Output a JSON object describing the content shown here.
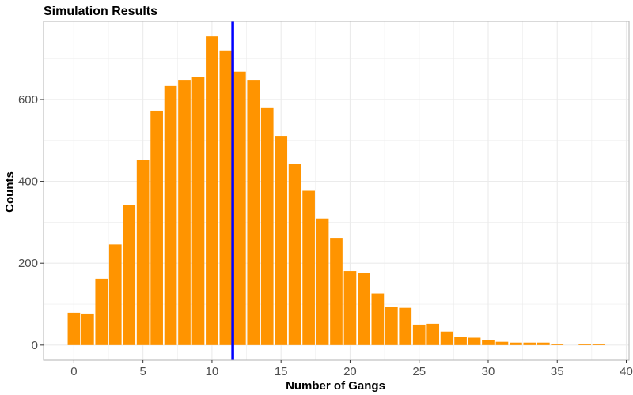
{
  "colors": {
    "bar": "#ff9400",
    "vline": "#0000ff",
    "grid": "#ebebeb",
    "panel_border": "#b3b3b3"
  },
  "chart_data": {
    "type": "bar",
    "title": "Simulation Results",
    "xlabel": "Number of Gangs",
    "ylabel": "Counts",
    "x": [
      0,
      1,
      2,
      3,
      4,
      5,
      6,
      7,
      8,
      9,
      10,
      11,
      12,
      13,
      14,
      15,
      16,
      17,
      18,
      19,
      20,
      21,
      22,
      23,
      24,
      25,
      26,
      27,
      28,
      29,
      30,
      31,
      32,
      33,
      34,
      35,
      36,
      37,
      38
    ],
    "values": [
      79,
      77,
      162,
      246,
      342,
      453,
      573,
      633,
      648,
      654,
      754,
      720,
      668,
      648,
      579,
      511,
      443,
      377,
      309,
      262,
      181,
      177,
      126,
      93,
      91,
      50,
      52,
      33,
      20,
      18,
      13,
      8,
      6,
      6,
      6,
      2,
      0,
      2,
      2
    ],
    "vline_x": 11.5,
    "xlim": [
      -2.2,
      40.2
    ],
    "ylim": [
      -37,
      791
    ],
    "xticks": [
      0,
      5,
      10,
      15,
      20,
      25,
      30,
      35,
      40
    ],
    "yticks": [
      0,
      200,
      400,
      600
    ],
    "grid": true
  }
}
